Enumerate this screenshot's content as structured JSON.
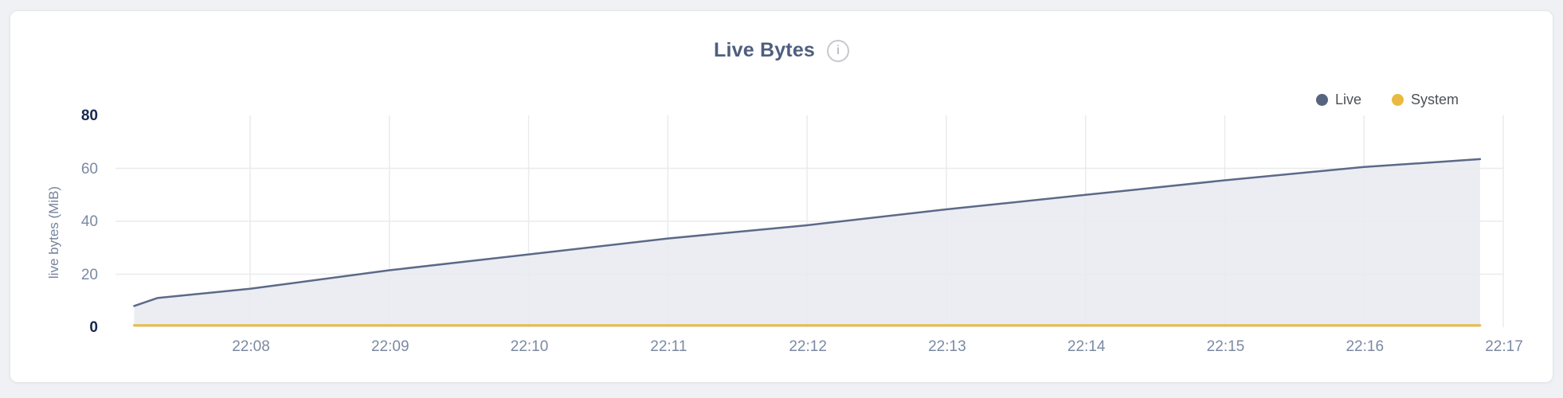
{
  "card": {
    "title": "Live Bytes"
  },
  "icons": {
    "info": "i"
  },
  "legend": [
    {
      "label": "Live",
      "dot_color": "#57647f"
    },
    {
      "label": "System",
      "dot_color": "#e9ba41"
    }
  ],
  "chart_data": {
    "type": "area",
    "title": "Live Bytes",
    "xlabel": "",
    "ylabel": "live bytes (MiB)",
    "ylim": [
      0,
      80
    ],
    "yticks": [
      0,
      20,
      40,
      60,
      80
    ],
    "yticks_emphasized": [
      0,
      80
    ],
    "xticks": [
      "22:08",
      "22:09",
      "22:10",
      "22:11",
      "22:12",
      "22:13",
      "22:14",
      "22:15",
      "22:16",
      "22:17"
    ],
    "grid": true,
    "legend_position": "top-right",
    "x_domain": [
      "22:07:10",
      "22:16:50"
    ],
    "series": [
      {
        "name": "Live",
        "color": "#5c6a88",
        "fill_color": "#ebedf3",
        "line_width": 2.5,
        "points": [
          [
            "22:07:10",
            8
          ],
          [
            "22:07:20",
            11
          ],
          [
            "22:08:00",
            14.5
          ],
          [
            "22:09:00",
            21.5
          ],
          [
            "22:10:00",
            27.5
          ],
          [
            "22:11:00",
            33.5
          ],
          [
            "22:12:00",
            38.5
          ],
          [
            "22:13:00",
            44.5
          ],
          [
            "22:14:00",
            50
          ],
          [
            "22:15:00",
            55.5
          ],
          [
            "22:16:00",
            60.5
          ],
          [
            "22:16:50",
            63.5
          ]
        ]
      },
      {
        "name": "System",
        "color": "#e9bc43",
        "fill_color": null,
        "line_width": 3,
        "points": [
          [
            "22:07:10",
            0.7
          ],
          [
            "22:16:50",
            0.7
          ]
        ]
      }
    ],
    "grid_color": "#e9ebee"
  }
}
